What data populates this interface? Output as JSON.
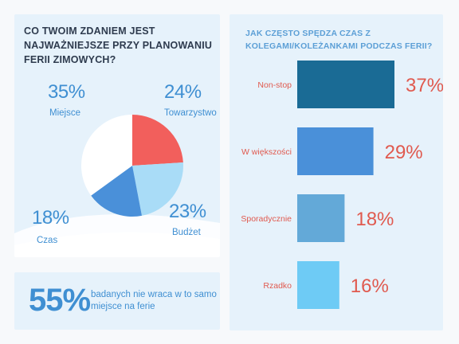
{
  "left_chart": {
    "title": "CO TWOIM ZDANIEM JEST NAJWAŻNIEJSZE PRZY PLANOWANIU FERII ZIMOWYCH?",
    "chart_data": {
      "type": "pie",
      "slices": [
        {
          "label": "Towarzystwo",
          "value": 24,
          "display": "24%",
          "color": "#f25f5c"
        },
        {
          "label": "Budżet",
          "value": 23,
          "display": "23%",
          "color": "#a9dcf7"
        },
        {
          "label": "Czas",
          "value": 18,
          "display": "18%",
          "color": "#4a90d9"
        },
        {
          "label": "Miejsce",
          "value": 35,
          "display": "35%",
          "color": "#ffffff"
        }
      ]
    }
  },
  "right_chart": {
    "title": "JAK CZĘSTO SPĘDZA CZAS Z KOLEGAMI/KOLEŻANKAMI PODCZAS FERII?",
    "chart_data": {
      "type": "bar",
      "orientation": "horizontal",
      "categories": [
        "Non-stop",
        "W większości",
        "Sporadycznie",
        "Rzadko"
      ],
      "values": [
        37,
        29,
        18,
        16
      ],
      "value_labels": [
        "37%",
        "29%",
        "18%",
        "16%"
      ],
      "colors": [
        "#1a6b95",
        "#4a90d9",
        "#63a9d8",
        "#6ecbf5"
      ],
      "category_label_color": "#e05a4f",
      "value_label_color": "#e05a4f"
    }
  },
  "stat": {
    "number": "55%",
    "text": "badanych nie wraca w to samo miejsce na ferie"
  }
}
